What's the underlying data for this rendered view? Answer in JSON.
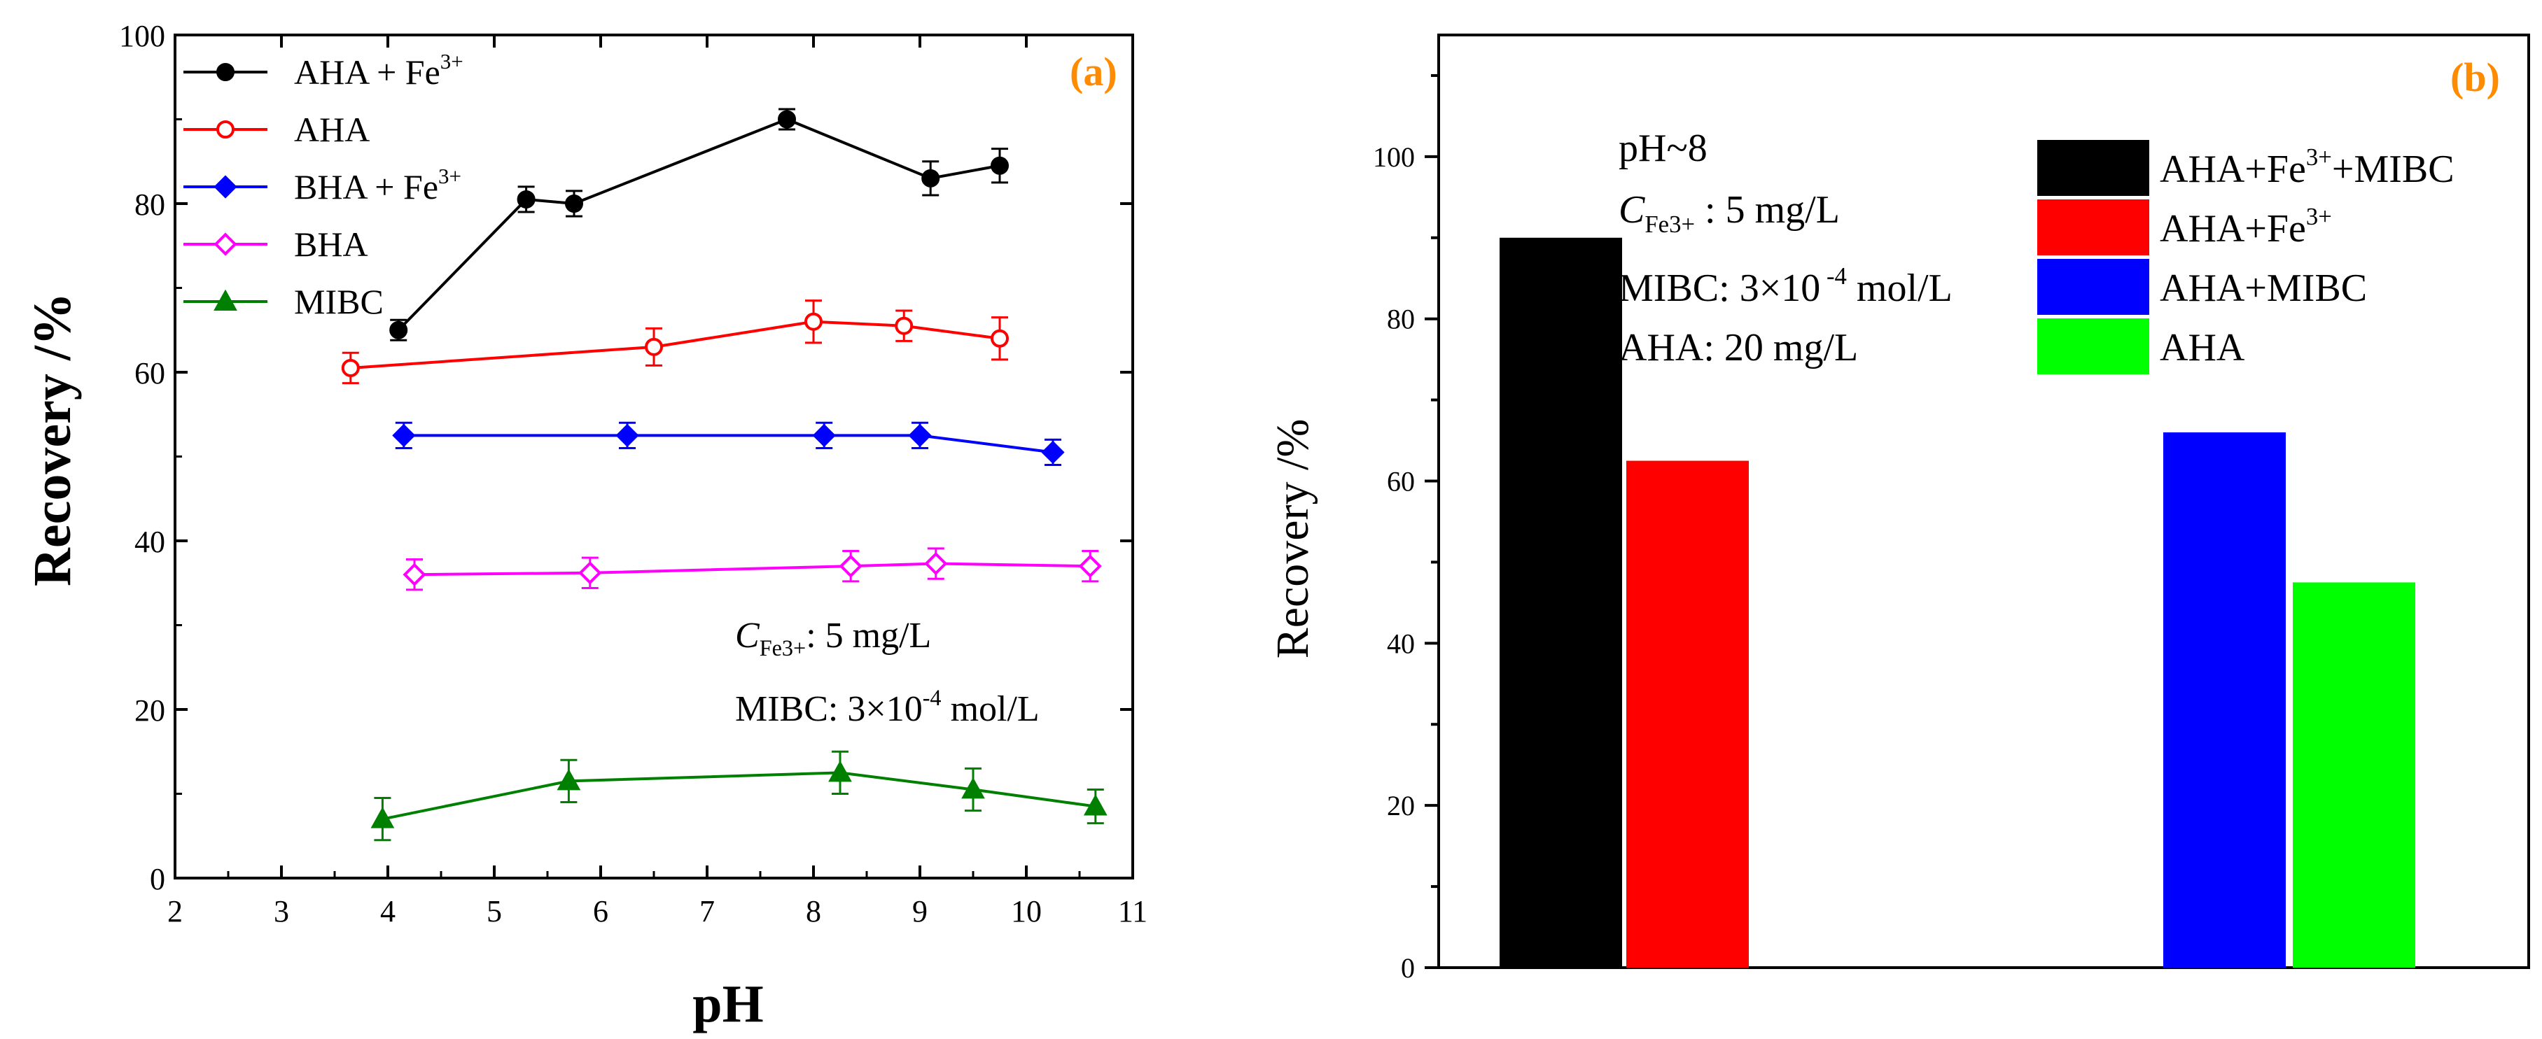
{
  "chart_data": [
    {
      "type": "line",
      "panel_label": "(a)",
      "xlabel": "pH",
      "ylabel": "Recovery /%",
      "xlim": [
        2,
        11
      ],
      "ylim": [
        0,
        100
      ],
      "xticks": [
        "2",
        "3",
        "4",
        "5",
        "6",
        "7",
        "8",
        "9",
        "10",
        "11"
      ],
      "yticks": [
        "0",
        "20",
        "40",
        "60",
        "80",
        "100"
      ],
      "legend_position": "top-left",
      "series": [
        {
          "name": "AHA + Fe3+",
          "label_main": "AHA + Fe",
          "label_sup": "3+",
          "color": "#000000",
          "marker": "circle",
          "filled": true,
          "x": [
            4.1,
            5.3,
            5.75,
            7.75,
            9.1,
            9.75
          ],
          "y": [
            65,
            80.5,
            80,
            90,
            83,
            84.5
          ],
          "err": [
            1.2,
            1.5,
            1.5,
            1.2,
            2.0,
            2.0
          ]
        },
        {
          "name": "AHA",
          "label_main": "AHA",
          "label_sup": "",
          "color": "#ff0000",
          "marker": "circle",
          "filled": false,
          "x": [
            3.65,
            6.5,
            8.0,
            8.85,
            9.75
          ],
          "y": [
            60.5,
            63,
            66,
            65.5,
            64
          ],
          "err": [
            1.8,
            2.2,
            2.5,
            1.8,
            2.5
          ]
        },
        {
          "name": "BHA + Fe3+",
          "label_main": "BHA + Fe",
          "label_sup": "3+",
          "color": "#0000ff",
          "marker": "diamond",
          "filled": true,
          "x": [
            4.15,
            6.25,
            8.1,
            9.0,
            10.25
          ],
          "y": [
            52.5,
            52.5,
            52.5,
            52.5,
            50.5
          ],
          "err": [
            1.5,
            1.5,
            1.5,
            1.5,
            1.5
          ]
        },
        {
          "name": "BHA",
          "label_main": "BHA",
          "label_sup": "",
          "color": "#ff00ff",
          "marker": "diamond",
          "filled": false,
          "x": [
            4.25,
            5.9,
            8.35,
            9.15,
            10.6
          ],
          "y": [
            36,
            36.2,
            37,
            37.3,
            37
          ],
          "err": [
            1.8,
            1.8,
            1.8,
            1.8,
            1.8
          ]
        },
        {
          "name": "MIBC",
          "label_main": "MIBC",
          "label_sup": "",
          "color": "#008000",
          "marker": "triangle",
          "filled": true,
          "x": [
            3.95,
            5.7,
            8.25,
            9.5,
            10.65
          ],
          "y": [
            7,
            11.5,
            12.5,
            10.5,
            8.5
          ],
          "err": [
            2.5,
            2.5,
            2.5,
            2.5,
            2.0
          ]
        }
      ],
      "annotations": {
        "conc_label": "C",
        "conc_sub": "Fe3+",
        "conc_value": ": 5 mg/L",
        "mibc_text": "MIBC: 3×10",
        "mibc_exp": "-4",
        "mibc_unit": " mol/L"
      }
    },
    {
      "type": "bar",
      "panel_label": "(b)",
      "xlabel": "",
      "ylabel": "Recovery /%",
      "ylim": [
        0,
        115
      ],
      "yticks": [
        "0",
        "20",
        "40",
        "60",
        "80",
        "100"
      ],
      "legend_position": "top-right",
      "series": [
        {
          "name": "AHA+Fe3++MIBC",
          "label_a": "AHA+Fe",
          "label_sup": "3+",
          "label_b": "+MIBC",
          "color": "#000000",
          "value": 90
        },
        {
          "name": "AHA+Fe3+",
          "label_a": "AHA+Fe",
          "label_sup": "3+",
          "label_b": "",
          "color": "#ff0000",
          "value": 62.5
        },
        {
          "name": "AHA+MIBC",
          "label_a": "AHA+MIBC",
          "label_sup": "",
          "label_b": "",
          "color": "#0000ff",
          "value": 66
        },
        {
          "name": "AHA",
          "label_a": "AHA",
          "label_sup": "",
          "label_b": "",
          "color": "#00ff00",
          "value": 47.5
        }
      ],
      "annotations": {
        "ph": "pH~8",
        "conc_label": "C",
        "conc_sub": "Fe3+",
        "conc_value": " : 5 mg/L",
        "mibc_text": "MIBC: 3×10",
        "mibc_exp": " -4",
        "mibc_unit": " mol/L",
        "aha_text": "AHA: 20 mg/L"
      }
    }
  ]
}
